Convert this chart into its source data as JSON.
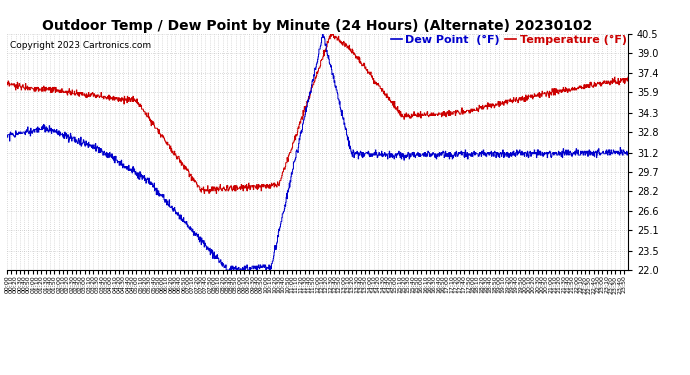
{
  "title": "Outdoor Temp / Dew Point by Minute (24 Hours) (Alternate) 20230102",
  "copyright": "Copyright 2023 Cartronics.com",
  "legend_dew": "Dew Point  (°F)",
  "legend_temp": "Temperature (°F)",
  "color_dew": "#0000cc",
  "color_temp": "#cc0000",
  "background_color": "#ffffff",
  "grid_color": "#bbbbbb",
  "ylim": [
    22.0,
    40.5
  ],
  "yticks": [
    22.0,
    23.5,
    25.1,
    26.6,
    28.2,
    29.7,
    31.2,
    32.8,
    34.3,
    35.9,
    37.4,
    39.0,
    40.5
  ],
  "title_fontsize": 10,
  "copyright_fontsize": 6.5,
  "legend_fontsize": 8,
  "total_minutes": 1440,
  "figsize": [
    6.9,
    3.75
  ],
  "dpi": 100
}
